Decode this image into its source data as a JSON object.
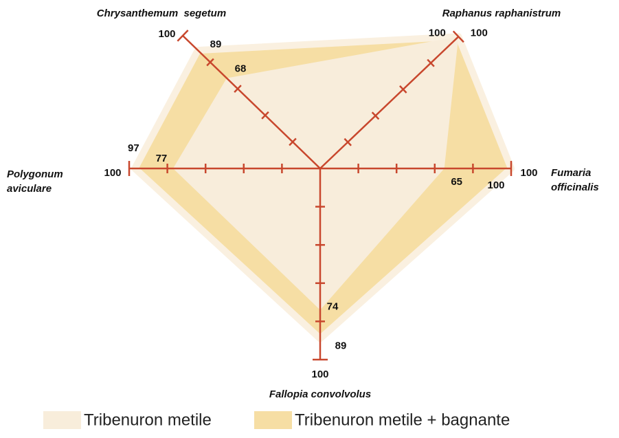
{
  "chart_data": {
    "type": "radar",
    "categories": [
      "Chrysanthemum  segetum",
      "Raphanus raphanistrum",
      "Fumaria officinalis",
      "Fallopia convolvolus",
      "Polygonum aviculare"
    ],
    "series": [
      {
        "name": "Tribenuron metile",
        "color": "#f8eddb",
        "values": [
          68,
          100,
          65,
          74,
          77
        ],
        "value_labels": [
          "68",
          null,
          "65",
          "74",
          "77"
        ]
      },
      {
        "name": "Tribenuron metile + bagnante",
        "color": "#f6dea4",
        "values": [
          89,
          100,
          100,
          89,
          97
        ]
      }
    ],
    "rlim": [
      0,
      100
    ],
    "rticks": [
      20,
      40,
      60,
      80,
      100
    ],
    "axis_color": "#c8472d"
  }
}
